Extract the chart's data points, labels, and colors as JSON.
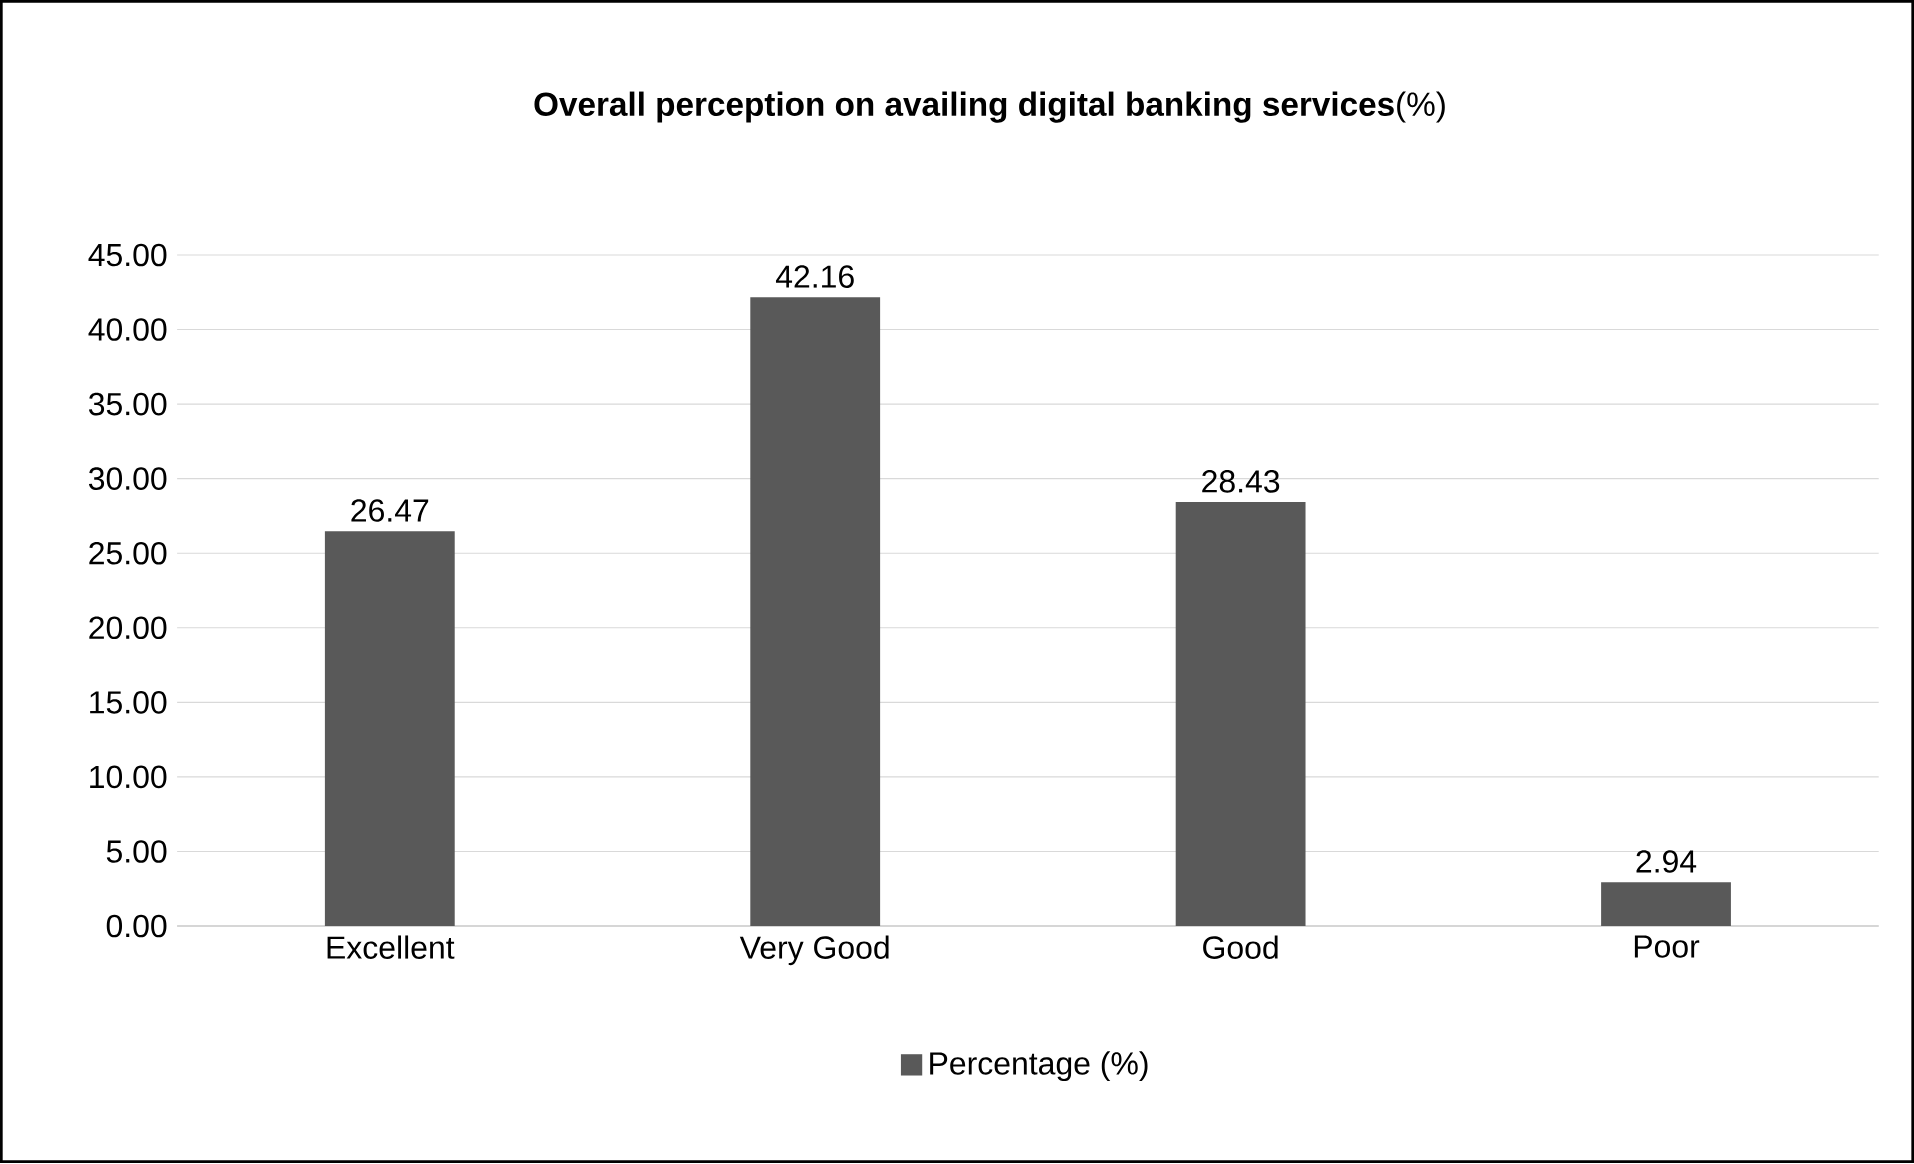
{
  "chart_data": {
    "type": "bar",
    "title": "**Overall perception on availing digital banking services**(%)",
    "categories": [
      "Excellent",
      "Very Good",
      "Good",
      "Poor"
    ],
    "series": [
      {
        "name": "Percentage (%)",
        "color": "#595959",
        "values": [
          26.47,
          42.16,
          28.43,
          2.94
        ]
      }
    ],
    "ylim": [
      0,
      45
    ],
    "yticks": [
      {
        "value": 0,
        "label": "0.00"
      },
      {
        "value": 5,
        "label": "5.00"
      },
      {
        "value": 10,
        "label": "10.00"
      },
      {
        "value": 15,
        "label": "15.00"
      },
      {
        "value": 20,
        "label": "20.00"
      },
      {
        "value": 25,
        "label": "25.00"
      },
      {
        "value": 30,
        "label": "30.00"
      },
      {
        "value": 35,
        "label": "35.00"
      },
      {
        "value": 40,
        "label": "40.00"
      },
      {
        "value": 45,
        "label": "45.00"
      }
    ],
    "grid": "y",
    "legend": "bottom",
    "data_labels": true
  }
}
